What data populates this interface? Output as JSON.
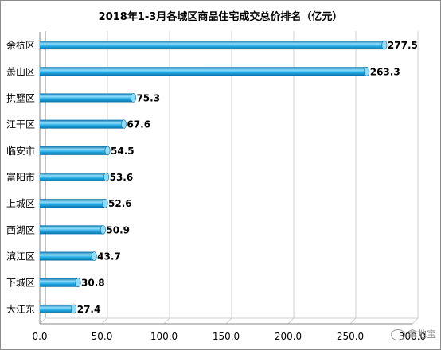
{
  "chart_data": {
    "type": "bar",
    "orientation": "horizontal",
    "title": "2018年1-3月各城区商品住宅成交总价排名（亿元）",
    "categories": [
      "余杭区",
      "萧山区",
      "拱墅区",
      "江干区",
      "临安市",
      "富阳市",
      "上城区",
      "西湖区",
      "滨江区",
      "下城区",
      "大江东"
    ],
    "values": [
      277.5,
      263.3,
      75.3,
      67.6,
      54.5,
      53.6,
      52.6,
      50.9,
      43.7,
      30.8,
      27.4
    ],
    "data_labels": [
      "277.5",
      "263.3",
      "75.3",
      "67.6",
      "54.5",
      "53.6",
      "52.6",
      "50.9",
      "43.7",
      "30.8",
      "27.4"
    ],
    "xlim": [
      0,
      300
    ],
    "x_ticks": [
      0,
      50,
      100,
      150,
      200,
      250,
      300
    ],
    "x_tick_labels": [
      "0.0",
      "50.0",
      "100.0",
      "150.0",
      "200.0",
      "250.0",
      "300.0"
    ],
    "xlabel": "",
    "ylabel": "",
    "grid": true,
    "legend": "none",
    "colors": {
      "bar": "#1fa8e2",
      "bar_light": "#8fdcfb",
      "bar_dark": "#0b6fa6",
      "grid": "#d0d0d0",
      "axis": "#888888"
    }
  },
  "watermark": {
    "icon": "wechat-icon",
    "text": "拿地宝"
  }
}
